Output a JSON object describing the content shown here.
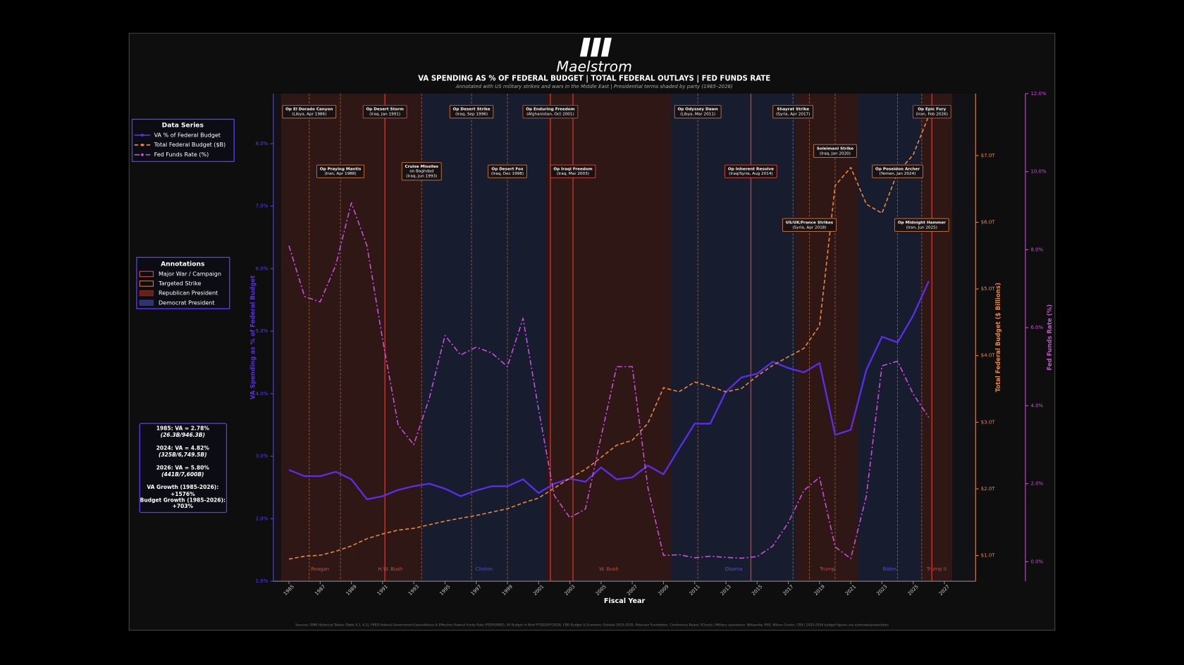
{
  "chart_data": {
    "type": "line",
    "logo": "Maelstrom",
    "title": "VA SPENDING AS % OF FEDERAL BUDGET  |  TOTAL FEDERAL OUTLAYS  |  FED FUNDS RATE",
    "subtitle": "Annotated with US military strikes and wars in the Middle East  |  Presidential terms shaded by party  (1985–2026)",
    "x_label": "Fiscal Year",
    "y_label": "VA Spending as % of Federal Budget",
    "y2_label": "Total Federal Budget ($ Billions)",
    "y3_label": "Fed Funds Rate (%)",
    "x": [
      1985,
      1986,
      1987,
      1988,
      1989,
      1990,
      1991,
      1992,
      1993,
      1994,
      1995,
      1996,
      1997,
      1998,
      1999,
      2000,
      2001,
      2002,
      2003,
      2004,
      2005,
      2006,
      2007,
      2008,
      2009,
      2010,
      2011,
      2012,
      2013,
      2014,
      2015,
      2016,
      2017,
      2018,
      2019,
      2020,
      2021,
      2022,
      2023,
      2024,
      2025,
      2026
    ],
    "xlim": [
      1984,
      2029
    ],
    "xticks": [
      1985,
      1987,
      1989,
      1991,
      1993,
      1995,
      1997,
      1999,
      2001,
      2003,
      2005,
      2007,
      2009,
      2011,
      2013,
      2015,
      2017,
      2019,
      2021,
      2023,
      2025,
      2027
    ],
    "ylim": [
      1.0,
      8.8
    ],
    "yticks": [
      {
        "value": 1,
        "label": "1.0%"
      },
      {
        "value": 2,
        "label": "2.0%"
      },
      {
        "value": 3,
        "label": "3.0%"
      },
      {
        "value": 4,
        "label": "4.0%"
      },
      {
        "value": 5,
        "label": "5.0%"
      },
      {
        "value": 6,
        "label": "6.0%"
      },
      {
        "value": 7,
        "label": "7.0%"
      },
      {
        "value": 8,
        "label": "8.0%"
      }
    ],
    "y2lim": [
      615,
      7930
    ],
    "y2ticks": [
      {
        "value": 1000,
        "label": "$1.0T"
      },
      {
        "value": 2000,
        "label": "$2.0T"
      },
      {
        "value": 3000,
        "label": "$3.0T"
      },
      {
        "value": 4000,
        "label": "$4.0T"
      },
      {
        "value": 5000,
        "label": "$5.0T"
      },
      {
        "value": 6000,
        "label": "$6.0T"
      },
      {
        "value": 7000,
        "label": "$7.0T"
      }
    ],
    "y3lim": [
      -0.5,
      12
    ],
    "y3ticks": [
      {
        "value": 0,
        "label": "0.0%"
      },
      {
        "value": 2,
        "label": "2.0%"
      },
      {
        "value": 4,
        "label": "4.0%"
      },
      {
        "value": 6,
        "label": "6.0%"
      },
      {
        "value": 8,
        "label": "8.0%"
      },
      {
        "value": 10,
        "label": "10.0%"
      },
      {
        "value": 12,
        "label": "12.0%"
      }
    ],
    "grid": false,
    "legend_title": "Data Series",
    "series": [
      {
        "name": "VA % of Federal Budget",
        "color": "#5b2ee8",
        "dash": "solid",
        "axis": "y",
        "values": [
          2.78,
          2.68,
          2.68,
          2.75,
          2.63,
          2.31,
          2.36,
          2.46,
          2.52,
          2.56,
          2.48,
          2.36,
          2.45,
          2.52,
          2.52,
          2.63,
          2.41,
          2.56,
          2.64,
          2.59,
          2.82,
          2.63,
          2.66,
          2.85,
          2.71,
          3.12,
          3.52,
          3.52,
          4.03,
          4.26,
          4.32,
          4.51,
          4.41,
          4.34,
          4.49,
          3.34,
          3.42,
          4.38,
          4.91,
          4.82,
          5.25,
          5.8
        ]
      },
      {
        "name": "Total Federal Budget ($B)",
        "color": "#e8893a",
        "dash": "dashed",
        "axis": "y2",
        "values": [
          946,
          990,
          1004,
          1064,
          1144,
          1253,
          1324,
          1382,
          1409,
          1462,
          1516,
          1560,
          1601,
          1652,
          1702,
          1789,
          1863,
          2011,
          2160,
          2293,
          2472,
          2655,
          2729,
          2983,
          3518,
          3457,
          3603,
          3537,
          3455,
          3506,
          3692,
          3853,
          3982,
          4109,
          4447,
          6550,
          6822,
          6272,
          6135,
          6750,
          7010,
          7600
        ]
      },
      {
        "name": "Fed Funds Rate (%)",
        "color": "#c850d8",
        "dash": "dashdot",
        "axis": "y3",
        "values": [
          8.1,
          6.8,
          6.66,
          7.6,
          9.2,
          8.1,
          5.7,
          3.5,
          3.0,
          4.2,
          5.8,
          5.3,
          5.5,
          5.35,
          5.0,
          6.24,
          3.9,
          1.7,
          1.13,
          1.35,
          3.2,
          5.0,
          5.0,
          1.9,
          0.16,
          0.18,
          0.1,
          0.14,
          0.11,
          0.09,
          0.13,
          0.4,
          1.0,
          1.83,
          2.16,
          0.38,
          0.08,
          1.68,
          5.02,
          5.14,
          4.3,
          3.7
        ]
      }
    ],
    "terms": [
      {
        "name": "Reagan",
        "party": "R",
        "start": 1984.5,
        "end": 1989.5
      },
      {
        "name": "H.W. Bush",
        "party": "R",
        "start": 1989.5,
        "end": 1993.5
      },
      {
        "name": "Clinton",
        "party": "D",
        "start": 1993.5,
        "end": 2001.5
      },
      {
        "name": "W. Bush",
        "party": "R",
        "start": 2001.5,
        "end": 2009.5
      },
      {
        "name": "Obama",
        "party": "D",
        "start": 2009.5,
        "end": 2017.5
      },
      {
        "name": "Trump",
        "party": "R",
        "start": 2017.5,
        "end": 2021.5
      },
      {
        "name": "Biden",
        "party": "D",
        "start": 2021.5,
        "end": 2025.5
      },
      {
        "name": "Trump II",
        "party": "R",
        "start": 2025.5,
        "end": 2027.5
      }
    ],
    "events": [
      {
        "kind": "strike",
        "x": 1986.3,
        "label": [
          "Op El Dorado Canyon",
          "(Libya, Apr 1986)"
        ]
      },
      {
        "kind": "strike",
        "x": 1988.3,
        "label": [
          "Op Praying Mantis",
          "(Iran, Apr 1988)"
        ]
      },
      {
        "kind": "war",
        "x": 1991.15,
        "label": [
          "Op Desert Storm",
          "(Iraq, Jan 1991)"
        ]
      },
      {
        "kind": "strike",
        "x": 1993.5,
        "label": [
          "Cruise Missiles",
          "on Baghdad",
          "(Iraq, Jun 1993)"
        ]
      },
      {
        "kind": "strike",
        "x": 1996.7,
        "label": [
          "Op Desert Strike",
          "(Iraq, Sep 1996)"
        ]
      },
      {
        "kind": "strike",
        "x": 1999.0,
        "label": [
          "Op Desert Fox",
          "(Iraq, Dec 1998)"
        ]
      },
      {
        "kind": "war",
        "x": 2001.75,
        "label": [
          "Op Enduring Freedom",
          "(Afghanistan, Oct 2001)"
        ]
      },
      {
        "kind": "war",
        "x": 2003.2,
        "label": [
          "Op Iraqi Freedom",
          "(Iraq, Mar 2003)"
        ]
      },
      {
        "kind": "strike",
        "x": 2011.2,
        "label": [
          "Op Odyssey Dawn",
          "(Libya, Mar 2011)"
        ]
      },
      {
        "kind": "war",
        "x": 2014.6,
        "label": [
          "Op Inherent Resolve",
          "(Iraq/Syria, Aug 2014)"
        ]
      },
      {
        "kind": "strike",
        "x": 2017.3,
        "label": [
          "Shayrat Strike",
          "(Syria, Apr 2017)"
        ]
      },
      {
        "kind": "strike",
        "x": 2018.35,
        "label": [
          "US/UK/France Strikes",
          "(Syria, Apr 2018)"
        ]
      },
      {
        "kind": "strike",
        "x": 2020.0,
        "label": [
          "Soleimani Strike",
          "(Iraq, Jan 2020)"
        ]
      },
      {
        "kind": "strike",
        "x": 2024.0,
        "label": [
          "Op Poseidon Archer",
          "(Yemen, Jan 2024)"
        ]
      },
      {
        "kind": "strike",
        "x": 2025.55,
        "label": [
          "Op Midnight Hammer",
          "(Iran, Jun 2025)"
        ]
      },
      {
        "kind": "war",
        "x": 2026.2,
        "label": [
          "Op Epic Fury",
          "(Iran, Feb 2026)"
        ]
      }
    ],
    "annotation_legend": {
      "title": "Annotations",
      "items": [
        "Major War / Campaign",
        "Targeted Strike",
        "Republican President",
        "Democrat President"
      ]
    },
    "stats_box": [
      "1985: VA = 2.78%",
      "(26.3B/946.3B)",
      "2024: VA = 4.82%",
      "(325B/6,749.5B)",
      "2026: VA = 5.80%",
      "(441B/7,600B)",
      "VA Growth (1985-2026):",
      "+1576%",
      "Budget Growth (1985-2026):",
      "+703%"
    ],
    "sources": "Sources: OMB Historical Tables (Table 4.1, 4.2), FRED Federal Government Expenditures & Effective Federal Funds Rate (FEDFUNDS), VA Budget in Brief FY2025/FY2026, CBO Budget & Economic Outlook 2025-2035, Peterson Foundation, Conference Board, YCharts  |  Military operations: Wikipedia, RSS, Wilson Center, CRS  |  2025-2026 budget figures are estimates/projections"
  }
}
